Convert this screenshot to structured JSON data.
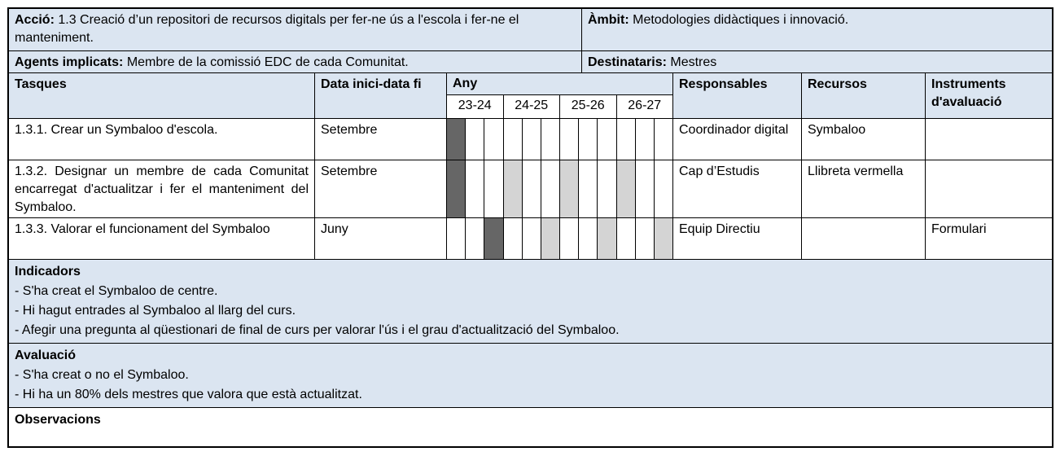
{
  "colors": {
    "header_bg": "#dbe5f1",
    "gantt_dark": "#666666",
    "gantt_light": "#d4d4d4",
    "border": "#000000"
  },
  "info": {
    "accio": {
      "label": "Acció:",
      "text": "1.3 Creació d’un repositori de recursos digitals per fer-ne ús a l'escola i fer-ne el manteniment."
    },
    "ambit": {
      "label": "Àmbit:",
      "text": "Metodologies didàctiques i innovació."
    },
    "agents": {
      "label": "Agents implicats:",
      "text": "Membre de la comissió EDC de cada Comunitat."
    },
    "destinataris": {
      "label": "Destinataris:",
      "text": "Mestres"
    }
  },
  "headers": {
    "tasques": "Tasques",
    "data_inici": "Data inici-data fi",
    "any": "Any",
    "years": [
      "23-24",
      "24-25",
      "25-26",
      "26-27"
    ],
    "responsables": "Responsables",
    "recursos": "Recursos",
    "instruments": "Instruments d'avaluació"
  },
  "tasks": [
    {
      "tasca": "1.3.1. Crear un Symbaloo d'escola.",
      "data_inici": "Setembre",
      "gantt": [
        "dark",
        "",
        "",
        "",
        "",
        "",
        "",
        "",
        "",
        "",
        "",
        ""
      ],
      "responsables": "Coordinador digital",
      "recursos": "Symbaloo",
      "instruments": ""
    },
    {
      "tasca": "1.3.2. Designar un membre de cada Comunitat encarregat d'actualitzar i fer el manteniment del Symbaloo.",
      "data_inici": "Setembre",
      "gantt": [
        "dark",
        "",
        "",
        "light",
        "",
        "",
        "light",
        "",
        "",
        "light",
        "",
        ""
      ],
      "responsables": "Cap d’Estudis",
      "recursos": "Llibreta vermella",
      "instruments": ""
    },
    {
      "tasca": "1.3.3. Valorar el funcionament del Symbaloo",
      "data_inici": "Juny",
      "gantt": [
        "",
        "",
        "dark",
        "",
        "",
        "light",
        "",
        "",
        "light",
        "",
        "",
        "light"
      ],
      "responsables": "Equip Directiu",
      "recursos": "",
      "instruments": "Formulari"
    }
  ],
  "sections": [
    {
      "title": "Indicadors",
      "lines": [
        "- S'ha creat el Symbaloo de centre.",
        "- Hi hagut entrades al Symbaloo al llarg del curs.",
        "- Afegir una pregunta al qüestionari de final de curs per valorar l'ús i el grau d'actualització del Symbaloo."
      ]
    },
    {
      "title": "Avaluació",
      "lines": [
        "- S'ha creat o no el Symbaloo.",
        "- Hi ha un 80% dels mestres que valora que està actualitzat."
      ]
    },
    {
      "title": "Observacions",
      "lines": []
    }
  ]
}
